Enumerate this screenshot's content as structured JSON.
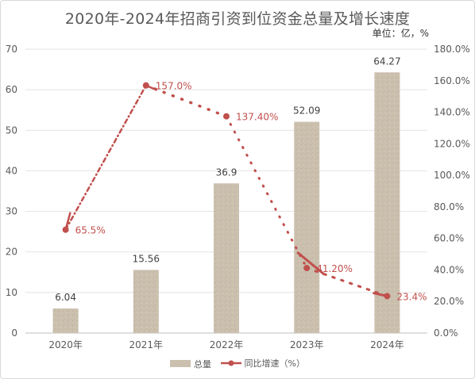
{
  "chart_data": {
    "type": "bar+line",
    "title": "2020年-2024年招商引资到位资金总量及增长速度",
    "unit_note": "单位：亿，%",
    "categories": [
      "2020年",
      "2021年",
      "2022年",
      "2023年",
      "2024年"
    ],
    "series": [
      {
        "name": "总量",
        "type": "bar",
        "axis": "left",
        "values": [
          6.04,
          15.56,
          36.9,
          52.09,
          64.27
        ],
        "labels": [
          "6.04",
          "15.56",
          "36.9",
          "52.09",
          "64.27"
        ],
        "color": "#cbbfae"
      },
      {
        "name": "同比增速（%）",
        "type": "line",
        "axis": "right",
        "values": [
          65.5,
          157.0,
          137.4,
          41.2,
          23.4
        ],
        "labels": [
          "65.5%",
          "157.0%",
          "137.40%",
          "41.20%",
          "23.4%"
        ],
        "color": "#c0504d"
      }
    ],
    "left_axis": {
      "ylim": [
        0,
        70
      ],
      "ticks": [
        "0",
        "10",
        "20",
        "30",
        "40",
        "50",
        "60",
        "70"
      ],
      "tick_values": [
        0,
        10,
        20,
        30,
        40,
        50,
        60,
        70
      ]
    },
    "right_axis": {
      "ylim": [
        0,
        180
      ],
      "ticks": [
        "0.0%",
        "20.0%",
        "40.0%",
        "60.0%",
        "80.0%",
        "100.0%",
        "120.0%",
        "140.0%",
        "160.0%",
        "180.0%"
      ],
      "tick_values": [
        0,
        20,
        40,
        60,
        80,
        100,
        120,
        140,
        160,
        180
      ]
    },
    "grid": true,
    "legend_position": "bottom"
  }
}
